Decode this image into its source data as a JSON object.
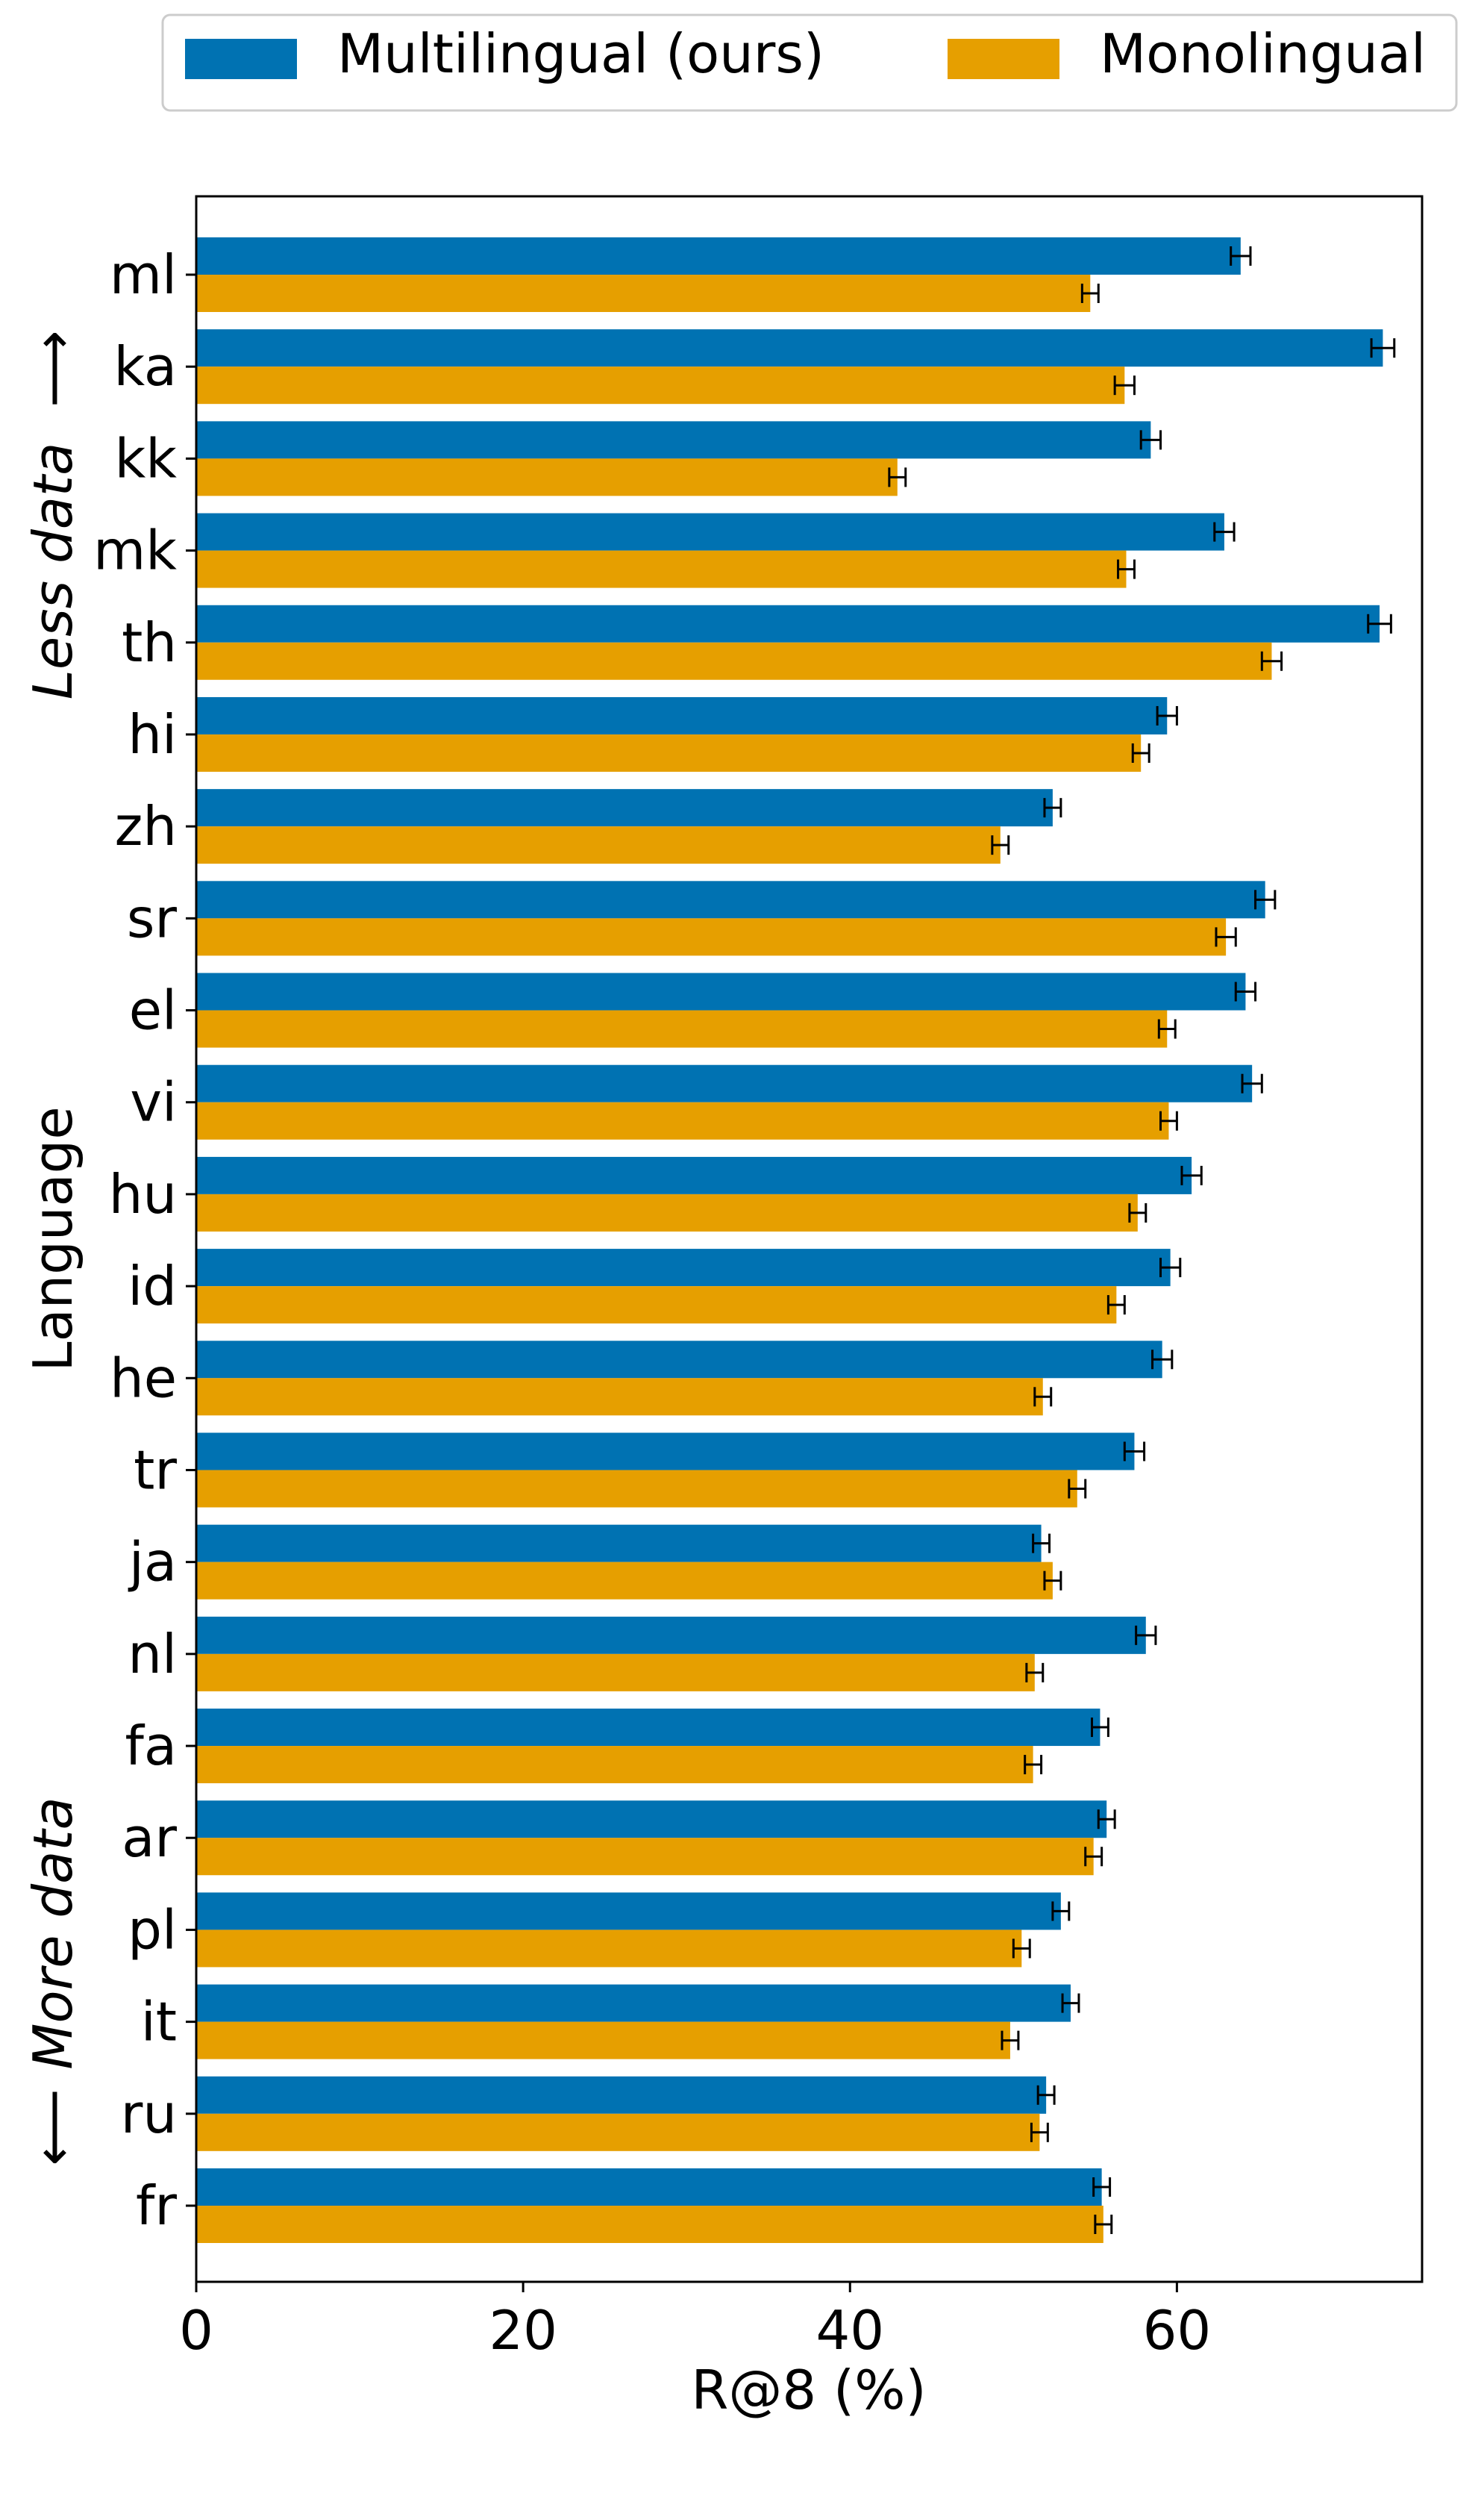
{
  "chart_data": {
    "type": "bar",
    "orientation": "horizontal",
    "categories": [
      "ml",
      "ka",
      "kk",
      "mk",
      "th",
      "hi",
      "zh",
      "sr",
      "el",
      "vi",
      "hu",
      "id",
      "he",
      "tr",
      "ja",
      "nl",
      "fa",
      "ar",
      "pl",
      "it",
      "ru",
      "fr"
    ],
    "series": [
      {
        "name": "Multilingual (ours)",
        "color": "#0072B2",
        "values": [
          63.9,
          72.6,
          58.4,
          62.9,
          72.4,
          59.4,
          52.4,
          65.4,
          64.2,
          64.6,
          60.9,
          59.6,
          59.1,
          57.4,
          51.7,
          58.1,
          55.3,
          55.7,
          52.9,
          53.5,
          52.0,
          55.4
        ],
        "errors": [
          0.6,
          0.7,
          0.6,
          0.6,
          0.7,
          0.6,
          0.5,
          0.6,
          0.6,
          0.6,
          0.6,
          0.6,
          0.6,
          0.6,
          0.5,
          0.6,
          0.5,
          0.5,
          0.5,
          0.5,
          0.5,
          0.5
        ]
      },
      {
        "name": "Monolingual",
        "color": "#E69F00",
        "values": [
          54.7,
          56.8,
          42.9,
          56.9,
          65.8,
          57.8,
          49.2,
          63.0,
          59.4,
          59.5,
          57.6,
          56.3,
          51.8,
          53.9,
          52.4,
          51.3,
          51.2,
          54.9,
          50.5,
          49.8,
          51.6,
          55.5
        ],
        "errors": [
          0.5,
          0.6,
          0.5,
          0.5,
          0.6,
          0.5,
          0.5,
          0.6,
          0.5,
          0.5,
          0.5,
          0.5,
          0.5,
          0.5,
          0.5,
          0.5,
          0.5,
          0.5,
          0.5,
          0.5,
          0.5,
          0.5
        ]
      }
    ],
    "xlabel": "R@8 (%)",
    "ylabel": "Language",
    "xlim": [
      0,
      75
    ],
    "xticks": [
      0,
      20,
      40,
      60
    ],
    "legend_position": "top",
    "annotations": {
      "top": "Less data",
      "top_arrow": "⟶",
      "bottom": "More data",
      "bottom_arrow": "⟵"
    },
    "grid": false
  }
}
